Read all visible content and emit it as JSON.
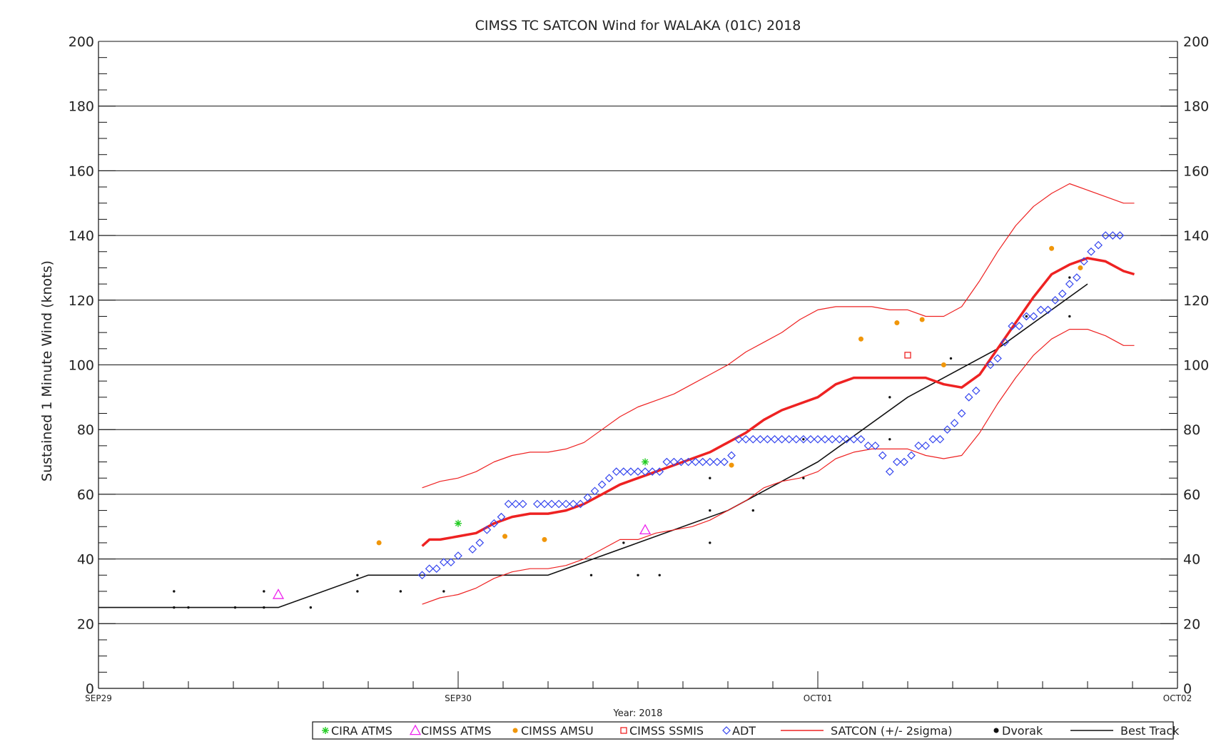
{
  "chart_data": {
    "type": "scatter",
    "title": "CIMSS TC SATCON Wind for WALAKA (01C) 2018",
    "ylabel": "Sustained 1 Minute Wind (knots)",
    "xlabel": "Year: 2018",
    "ylim": [
      0,
      200
    ],
    "xlim": [
      0,
      3
    ],
    "x_units": "days since SEP29 00Z",
    "yticks": [
      0,
      20,
      40,
      60,
      80,
      100,
      120,
      140,
      160,
      180,
      200
    ],
    "ytick_labels": [
      "0",
      "20",
      "40",
      "60",
      "80",
      "100",
      "120",
      "140",
      "160",
      "180",
      "200"
    ],
    "xticks": [
      {
        "x": 0,
        "label": "SEP29"
      },
      {
        "x": 1,
        "label": "SEP30"
      },
      {
        "x": 2,
        "label": "OCT01"
      },
      {
        "x": 3,
        "label": "OCT02"
      }
    ],
    "grid": true,
    "legend": [
      {
        "name": "CIRA ATMS",
        "symbol": "asterisk",
        "color": "#22cc22"
      },
      {
        "name": "CIMSS ATMS",
        "symbol": "triangle",
        "color": "#ee22ee"
      },
      {
        "name": "CIMSS AMSU",
        "symbol": "filled-circle",
        "color": "#f0960a"
      },
      {
        "name": "CIMSS SSMIS",
        "symbol": "square",
        "color": "#ee2222"
      },
      {
        "name": "ADT",
        "symbol": "diamond",
        "color": "#3344ee"
      },
      {
        "name": "SATCON (+/-  2sigma)",
        "symbol": "line",
        "color": "#ee2222"
      },
      {
        "name": "Dvorak",
        "symbol": "filled-circle",
        "color": "#111111"
      },
      {
        "name": "Best Track",
        "symbol": "line",
        "color": "#111111"
      }
    ],
    "series": [
      {
        "name": "Best Track",
        "kind": "line",
        "color": "#111111",
        "points": [
          [
            0,
            25
          ],
          [
            0.5,
            25
          ],
          [
            0.75,
            35
          ],
          [
            1.25,
            35
          ],
          [
            1.5,
            45
          ],
          [
            1.75,
            55
          ],
          [
            2.0,
            70
          ],
          [
            2.25,
            90
          ],
          [
            2.5,
            105
          ],
          [
            2.75,
            125
          ]
        ]
      },
      {
        "name": "SATCON",
        "kind": "line",
        "color": "#ee2222",
        "points": [
          [
            0.9,
            44
          ],
          [
            0.92,
            46
          ],
          [
            0.95,
            46
          ],
          [
            1.0,
            47
          ],
          [
            1.05,
            48
          ],
          [
            1.1,
            51
          ],
          [
            1.15,
            53
          ],
          [
            1.2,
            54
          ],
          [
            1.25,
            54
          ],
          [
            1.3,
            55
          ],
          [
            1.35,
            57
          ],
          [
            1.4,
            60
          ],
          [
            1.45,
            63
          ],
          [
            1.5,
            65
          ],
          [
            1.55,
            67
          ],
          [
            1.6,
            69
          ],
          [
            1.65,
            71
          ],
          [
            1.7,
            73
          ],
          [
            1.75,
            76
          ],
          [
            1.8,
            79
          ],
          [
            1.85,
            83
          ],
          [
            1.9,
            86
          ],
          [
            1.95,
            88
          ],
          [
            2.0,
            90
          ],
          [
            2.05,
            94
          ],
          [
            2.1,
            96
          ],
          [
            2.15,
            96
          ],
          [
            2.2,
            96
          ],
          [
            2.25,
            96
          ],
          [
            2.3,
            96
          ],
          [
            2.35,
            94
          ],
          [
            2.4,
            93
          ],
          [
            2.45,
            97
          ],
          [
            2.5,
            105
          ],
          [
            2.55,
            113
          ],
          [
            2.6,
            121
          ],
          [
            2.65,
            128
          ],
          [
            2.7,
            131
          ],
          [
            2.75,
            133
          ],
          [
            2.8,
            132
          ],
          [
            2.85,
            129
          ],
          [
            2.88,
            128
          ]
        ]
      },
      {
        "name": "SATCON upper 2sigma",
        "kind": "line",
        "color": "#ee2222",
        "points": [
          [
            0.9,
            62
          ],
          [
            0.95,
            64
          ],
          [
            1.0,
            65
          ],
          [
            1.05,
            67
          ],
          [
            1.1,
            70
          ],
          [
            1.15,
            72
          ],
          [
            1.2,
            73
          ],
          [
            1.25,
            73
          ],
          [
            1.3,
            74
          ],
          [
            1.35,
            76
          ],
          [
            1.4,
            80
          ],
          [
            1.45,
            84
          ],
          [
            1.5,
            87
          ],
          [
            1.55,
            89
          ],
          [
            1.6,
            91
          ],
          [
            1.65,
            94
          ],
          [
            1.7,
            97
          ],
          [
            1.75,
            100
          ],
          [
            1.8,
            104
          ],
          [
            1.85,
            107
          ],
          [
            1.9,
            110
          ],
          [
            1.95,
            114
          ],
          [
            2.0,
            117
          ],
          [
            2.05,
            118
          ],
          [
            2.1,
            118
          ],
          [
            2.15,
            118
          ],
          [
            2.2,
            117
          ],
          [
            2.25,
            117
          ],
          [
            2.3,
            115
          ],
          [
            2.35,
            115
          ],
          [
            2.4,
            118
          ],
          [
            2.45,
            126
          ],
          [
            2.5,
            135
          ],
          [
            2.55,
            143
          ],
          [
            2.6,
            149
          ],
          [
            2.65,
            153
          ],
          [
            2.7,
            156
          ],
          [
            2.75,
            154
          ],
          [
            2.8,
            152
          ],
          [
            2.85,
            150
          ],
          [
            2.88,
            150
          ]
        ]
      },
      {
        "name": "SATCON lower 2sigma",
        "kind": "line",
        "color": "#ee2222",
        "points": [
          [
            0.9,
            26
          ],
          [
            0.95,
            28
          ],
          [
            1.0,
            29
          ],
          [
            1.05,
            31
          ],
          [
            1.1,
            34
          ],
          [
            1.15,
            36
          ],
          [
            1.2,
            37
          ],
          [
            1.25,
            37
          ],
          [
            1.3,
            38
          ],
          [
            1.35,
            40
          ],
          [
            1.4,
            43
          ],
          [
            1.45,
            46
          ],
          [
            1.5,
            46
          ],
          [
            1.55,
            48
          ],
          [
            1.6,
            49
          ],
          [
            1.65,
            50
          ],
          [
            1.7,
            52
          ],
          [
            1.75,
            55
          ],
          [
            1.8,
            58
          ],
          [
            1.85,
            62
          ],
          [
            1.9,
            64
          ],
          [
            1.95,
            65
          ],
          [
            2.0,
            67
          ],
          [
            2.05,
            71
          ],
          [
            2.1,
            73
          ],
          [
            2.15,
            74
          ],
          [
            2.2,
            74
          ],
          [
            2.25,
            74
          ],
          [
            2.3,
            72
          ],
          [
            2.35,
            71
          ],
          [
            2.4,
            72
          ],
          [
            2.45,
            79
          ],
          [
            2.5,
            88
          ],
          [
            2.55,
            96
          ],
          [
            2.6,
            103
          ],
          [
            2.65,
            108
          ],
          [
            2.7,
            111
          ],
          [
            2.75,
            111
          ],
          [
            2.8,
            109
          ],
          [
            2.85,
            106
          ],
          [
            2.88,
            106
          ]
        ]
      },
      {
        "name": "ADT",
        "kind": "diamond",
        "color": "#3344ee",
        "points": [
          [
            0.9,
            35
          ],
          [
            0.92,
            37
          ],
          [
            0.94,
            37
          ],
          [
            0.96,
            39
          ],
          [
            0.98,
            39
          ],
          [
            1.0,
            41
          ],
          [
            1.04,
            43
          ],
          [
            1.06,
            45
          ],
          [
            1.08,
            49
          ],
          [
            1.1,
            51
          ],
          [
            1.12,
            53
          ],
          [
            1.14,
            57
          ],
          [
            1.16,
            57
          ],
          [
            1.18,
            57
          ],
          [
            1.22,
            57
          ],
          [
            1.24,
            57
          ],
          [
            1.26,
            57
          ],
          [
            1.28,
            57
          ],
          [
            1.3,
            57
          ],
          [
            1.32,
            57
          ],
          [
            1.34,
            57
          ],
          [
            1.36,
            59
          ],
          [
            1.38,
            61
          ],
          [
            1.4,
            63
          ],
          [
            1.42,
            65
          ],
          [
            1.44,
            67
          ],
          [
            1.46,
            67
          ],
          [
            1.48,
            67
          ],
          [
            1.5,
            67
          ],
          [
            1.52,
            67
          ],
          [
            1.54,
            67
          ],
          [
            1.56,
            67
          ],
          [
            1.58,
            70
          ],
          [
            1.6,
            70
          ],
          [
            1.62,
            70
          ],
          [
            1.64,
            70
          ],
          [
            1.66,
            70
          ],
          [
            1.68,
            70
          ],
          [
            1.7,
            70
          ],
          [
            1.72,
            70
          ],
          [
            1.74,
            70
          ],
          [
            1.76,
            72
          ],
          [
            1.78,
            77
          ],
          [
            1.8,
            77
          ],
          [
            1.82,
            77
          ],
          [
            1.84,
            77
          ],
          [
            1.86,
            77
          ],
          [
            1.88,
            77
          ],
          [
            1.9,
            77
          ],
          [
            1.92,
            77
          ],
          [
            1.94,
            77
          ],
          [
            1.96,
            77
          ],
          [
            1.98,
            77
          ],
          [
            2.0,
            77
          ],
          [
            2.02,
            77
          ],
          [
            2.04,
            77
          ],
          [
            2.06,
            77
          ],
          [
            2.08,
            77
          ],
          [
            2.1,
            77
          ],
          [
            2.12,
            77
          ],
          [
            2.14,
            75
          ],
          [
            2.16,
            75
          ],
          [
            2.18,
            72
          ],
          [
            2.2,
            67
          ],
          [
            2.22,
            70
          ],
          [
            2.24,
            70
          ],
          [
            2.26,
            72
          ],
          [
            2.28,
            75
          ],
          [
            2.3,
            75
          ],
          [
            2.32,
            77
          ],
          [
            2.34,
            77
          ],
          [
            2.36,
            80
          ],
          [
            2.38,
            82
          ],
          [
            2.4,
            85
          ],
          [
            2.42,
            90
          ],
          [
            2.44,
            92
          ],
          [
            2.48,
            100
          ],
          [
            2.5,
            102
          ],
          [
            2.52,
            107
          ],
          [
            2.54,
            112
          ],
          [
            2.56,
            112
          ],
          [
            2.58,
            115
          ],
          [
            2.6,
            115
          ],
          [
            2.62,
            117
          ],
          [
            2.64,
            117
          ],
          [
            2.66,
            120
          ],
          [
            2.68,
            122
          ],
          [
            2.7,
            125
          ],
          [
            2.72,
            127
          ],
          [
            2.74,
            132
          ],
          [
            2.76,
            135
          ],
          [
            2.78,
            137
          ],
          [
            2.8,
            140
          ],
          [
            2.82,
            140
          ],
          [
            2.84,
            140
          ]
        ]
      },
      {
        "name": "CIMSS AMSU",
        "kind": "filled-circle",
        "color": "#f0960a",
        "points": [
          [
            0.78,
            45
          ],
          [
            1.13,
            47
          ],
          [
            1.24,
            46
          ],
          [
            1.76,
            69
          ],
          [
            2.12,
            108
          ],
          [
            2.22,
            113
          ],
          [
            2.29,
            114
          ],
          [
            2.35,
            100
          ],
          [
            2.65,
            136
          ],
          [
            2.73,
            130
          ]
        ]
      },
      {
        "name": "CIRA ATMS",
        "kind": "asterisk",
        "color": "#22cc22",
        "points": [
          [
            1.0,
            51
          ],
          [
            1.52,
            70
          ]
        ]
      },
      {
        "name": "CIMSS ATMS",
        "kind": "triangle",
        "color": "#ee22ee",
        "points": [
          [
            0.5,
            29
          ],
          [
            1.52,
            49
          ]
        ]
      },
      {
        "name": "CIMSS SSMIS",
        "kind": "square",
        "color": "#ee2222",
        "points": [
          [
            2.25,
            103
          ]
        ]
      },
      {
        "name": "Dvorak",
        "kind": "dot",
        "color": "#111111",
        "points": [
          [
            0.21,
            30
          ],
          [
            0.21,
            25
          ],
          [
            0.25,
            25
          ],
          [
            0.38,
            25
          ],
          [
            0.46,
            30
          ],
          [
            0.46,
            25
          ],
          [
            0.59,
            25
          ],
          [
            0.72,
            35
          ],
          [
            0.72,
            30
          ],
          [
            0.84,
            30
          ],
          [
            0.96,
            30
          ],
          [
            1.37,
            35
          ],
          [
            1.46,
            45
          ],
          [
            1.5,
            35
          ],
          [
            1.56,
            35
          ],
          [
            1.7,
            65
          ],
          [
            1.7,
            55
          ],
          [
            1.7,
            45
          ],
          [
            1.82,
            55
          ],
          [
            1.96,
            77
          ],
          [
            1.96,
            65
          ],
          [
            2.2,
            90
          ],
          [
            2.2,
            77
          ],
          [
            2.37,
            102
          ],
          [
            2.58,
            115
          ],
          [
            2.7,
            127
          ],
          [
            2.7,
            115
          ]
        ]
      }
    ]
  }
}
